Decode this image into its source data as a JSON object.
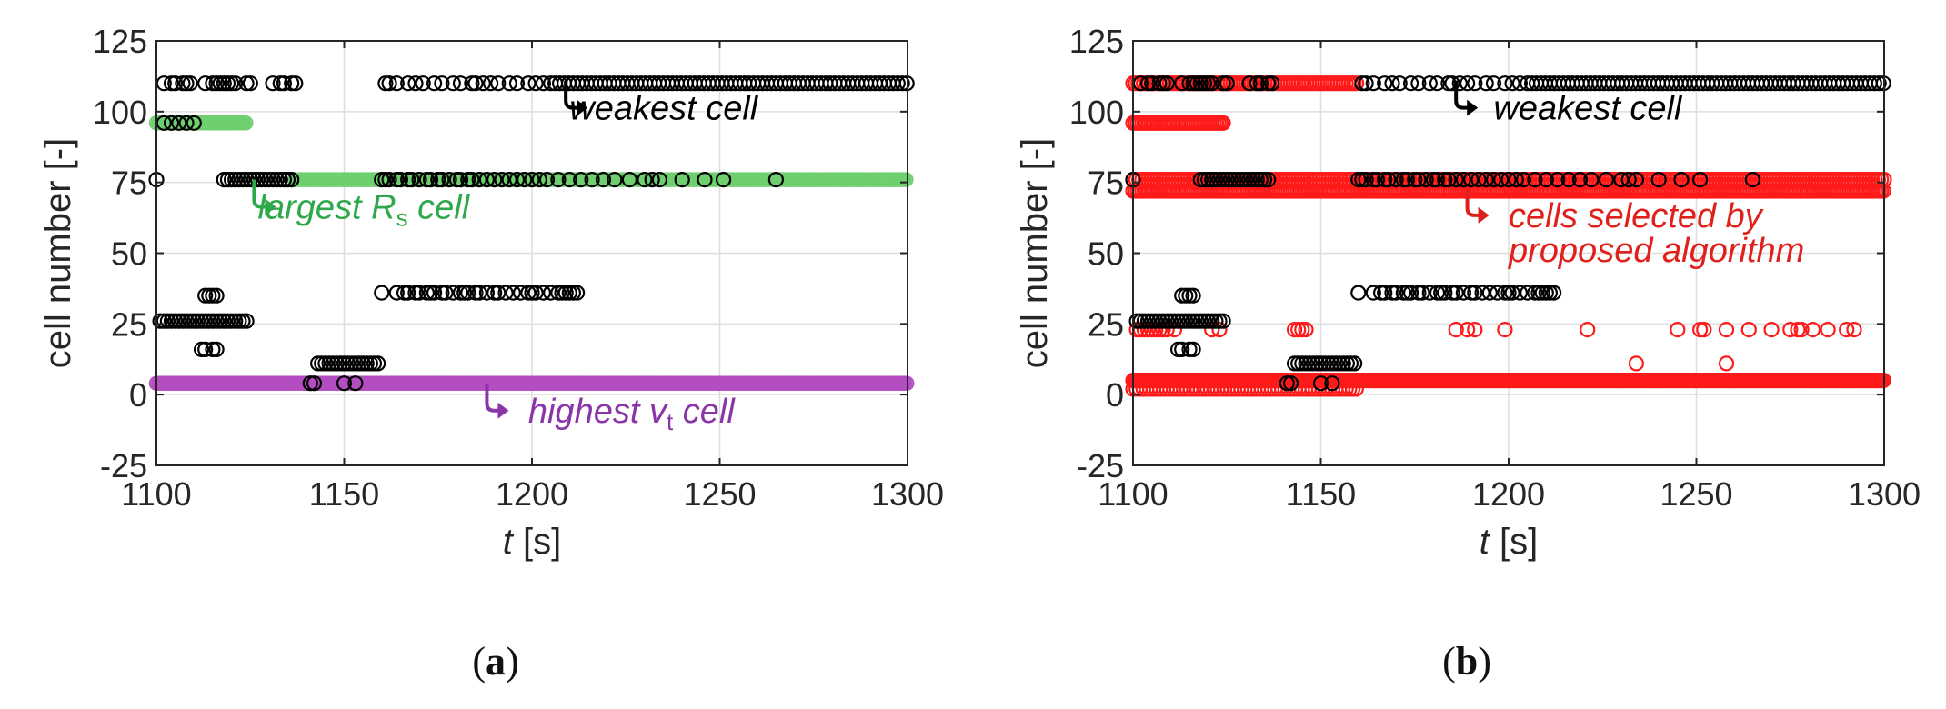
{
  "colors": {
    "axis": "#262626",
    "grid": "#dedede",
    "weakest": "#000000",
    "largest_rs": "#6fcf6f",
    "largest_rs_text": "#2ea84a",
    "highest_vt": "#b44dc2",
    "highest_vt_text": "#8a36a8",
    "selected": "#ff1a1a",
    "selected_text": "#e0201b"
  },
  "chart_data": [
    {
      "panel": "a",
      "type": "scatter",
      "xlabel_var": "t",
      "xlabel_unit": "[s]",
      "ylabel": "cell number [-]",
      "xlim": [
        1100,
        1300
      ],
      "ylim": [
        -25,
        125
      ],
      "xticks": [
        "1100",
        "1150",
        "1200",
        "1250",
        "1300"
      ],
      "yticks": [
        "-25",
        "0",
        "25",
        "50",
        "75",
        "100",
        "125"
      ],
      "grid": true,
      "caption": {
        "open": "(",
        "letter": "a",
        "close": ")"
      },
      "annotations": [
        {
          "text": "weakest cell",
          "x": 1210,
          "y": 101,
          "color": "weakest",
          "arrow_x": 1209,
          "arrow_y": 111
        },
        {
          "text_pre": "largest ",
          "var": "R",
          "sub": "s",
          "text_post": " cell",
          "x": 1127,
          "y": 66,
          "color": "largest_rs_text",
          "arrow_x": 1126,
          "arrow_y": 76
        },
        {
          "text_pre": "highest ",
          "var": "v",
          "sub": "t",
          "text_post": " cell",
          "x": 1199,
          "y": -6,
          "color": "highest_vt_text",
          "arrow_x": 1188,
          "arrow_y": 4
        }
      ],
      "series": [
        {
          "name": "highest v_t cell",
          "style": "filled",
          "color": "highest_vt",
          "y": 4,
          "segments": [
            [
              1100,
              1300,
              0.6
            ]
          ],
          "points": []
        },
        {
          "name": "largest R_s cell",
          "style": "filled",
          "color": "largest_rs",
          "segments": [],
          "points": [],
          "bands": [
            {
              "y": 96,
              "from": 1100,
              "to": 1124,
              "step": 0.7
            },
            {
              "y": 76,
              "from": 1137,
              "to": 1300,
              "step": 0.6
            }
          ]
        },
        {
          "name": "weakest cell",
          "style": "open",
          "color": "weakest",
          "groups": [
            {
              "y": 110,
              "xs": [
                1102,
                1104,
                1105,
                1107,
                1108,
                1109,
                1113,
                1115,
                1116,
                1117,
                1118,
                1119,
                1120,
                1121,
                1124,
                1125,
                1131,
                1133,
                1134,
                1136,
                1137,
                1161,
                1162,
                1164,
                1167,
                1169,
                1171,
                1174,
                1176,
                1179,
                1181,
                1184,
                1185,
                1187,
                1189,
                1191,
                1194,
                1196,
                1199,
                1201,
                1203
              ]
            },
            {
              "y": 110,
              "from": 1205,
              "to": 1300,
              "step": 1.2
            },
            {
              "y": 96,
              "xs": [
                1102,
                1104,
                1106,
                1108,
                1110
              ]
            },
            {
              "y": 76,
              "xs": [
                1100,
                1118,
                1119,
                1120,
                1121,
                1122,
                1123,
                1124,
                1125,
                1126,
                1127,
                1128,
                1129,
                1130,
                1131,
                1132,
                1133,
                1134,
                1135,
                1136,
                1160,
                1161,
                1162,
                1164,
                1165,
                1167,
                1168,
                1170,
                1172,
                1173,
                1175,
                1176,
                1178,
                1180,
                1181,
                1183,
                1184,
                1186,
                1188,
                1190,
                1192,
                1194,
                1196,
                1198,
                1200,
                1202,
                1204,
                1207,
                1210,
                1213,
                1216,
                1219,
                1222,
                1226,
                1230,
                1232,
                1234,
                1240,
                1246,
                1251,
                1265
              ]
            },
            {
              "y": 36,
              "xs": [
                1160,
                1164,
                1166,
                1167,
                1169,
                1170,
                1172,
                1173,
                1174,
                1176,
                1177,
                1179,
                1181,
                1182,
                1183,
                1185,
                1186,
                1188,
                1190,
                1191,
                1193,
                1195,
                1197,
                1199,
                1200,
                1201,
                1203,
                1205,
                1207,
                1208,
                1209,
                1210,
                1211,
                1212
              ]
            },
            {
              "y": 35,
              "xs": [
                1113,
                1114,
                1115,
                1116
              ]
            },
            {
              "y": 26,
              "xs": [
                1101,
                1102,
                1103,
                1104,
                1105,
                1106,
                1107,
                1108,
                1109,
                1110,
                1111,
                1112,
                1113,
                1114,
                1115,
                1116,
                1117,
                1118,
                1119,
                1120,
                1121,
                1122,
                1123,
                1124
              ]
            },
            {
              "y": 16,
              "xs": [
                1112,
                1113,
                1115,
                1116
              ]
            },
            {
              "y": 11,
              "xs": [
                1143,
                1144,
                1145,
                1146,
                1147,
                1148,
                1149,
                1150,
                1151,
                1152,
                1153,
                1154,
                1155,
                1156,
                1157,
                1158,
                1159
              ]
            },
            {
              "y": 4,
              "xs": [
                1141,
                1142,
                1150,
                1153
              ]
            }
          ]
        }
      ]
    },
    {
      "panel": "b",
      "type": "scatter",
      "xlabel_var": "t",
      "xlabel_unit": "[s]",
      "ylabel": "cell number [-]",
      "xlim": [
        1100,
        1300
      ],
      "ylim": [
        -25,
        125
      ],
      "xticks": [
        "1100",
        "1150",
        "1200",
        "1250",
        "1300"
      ],
      "yticks": [
        "-25",
        "0",
        "25",
        "50",
        "75",
        "100",
        "125"
      ],
      "grid": true,
      "caption": {
        "open": "(",
        "letter": "b",
        "close": ")"
      },
      "annotations": [
        {
          "text": "weakest cell",
          "x": 1196,
          "y": 101,
          "color": "weakest",
          "arrow_x": 1186,
          "arrow_y": 111
        },
        {
          "lines": [
            "cells selected by",
            "proposed algorithm"
          ],
          "x": 1200,
          "y": 63,
          "color": "selected_text",
          "arrow_x": 1189,
          "arrow_y": 73
        }
      ],
      "series": [
        {
          "name": "cells selected by proposed algorithm",
          "style": "open",
          "color": "selected",
          "bands": [
            {
              "y": 110,
              "from": 1100,
              "to": 1160,
              "step": 0.7
            },
            {
              "y": 96,
              "from": 1100,
              "to": 1124,
              "step": 0.6
            },
            {
              "y": 72,
              "from": 1100,
              "to": 1300,
              "step": 0.6
            },
            {
              "y": 76,
              "from": 1100,
              "to": 1300,
              "step": 0.8
            },
            {
              "y": 5,
              "from": 1100,
              "to": 1300,
              "step": 0.45
            },
            {
              "y": 2,
              "from": 1100,
              "to": 1160,
              "step": 0.9
            }
          ],
          "groups": [
            {
              "y": 23,
              "xs": [
                1101,
                1102,
                1103,
                1104,
                1105,
                1106,
                1107,
                1108,
                1109,
                1111,
                1121,
                1123,
                1143,
                1144,
                1145,
                1146,
                1186,
                1189,
                1191,
                1199,
                1221,
                1245,
                1251,
                1252,
                1258,
                1264,
                1270,
                1275,
                1277,
                1278,
                1281,
                1285,
                1290,
                1292
              ]
            },
            {
              "y": 11,
              "xs": [
                1234,
                1258
              ]
            }
          ]
        },
        {
          "name": "weakest cell",
          "style": "open",
          "color": "weakest",
          "groups": [
            {
              "y": 110,
              "xs": [
                1102,
                1104,
                1105,
                1107,
                1108,
                1109,
                1113,
                1115,
                1116,
                1117,
                1118,
                1119,
                1120,
                1121,
                1124,
                1125,
                1131,
                1133,
                1134,
                1136,
                1137,
                1161,
                1162,
                1164,
                1167,
                1169,
                1171,
                1174,
                1176,
                1179,
                1181,
                1184,
                1185,
                1187,
                1189,
                1191,
                1194,
                1196,
                1199,
                1201,
                1203
              ]
            },
            {
              "y": 110,
              "from": 1205,
              "to": 1300,
              "step": 1.2
            },
            {
              "y": 76,
              "xs": [
                1100,
                1118,
                1119,
                1120,
                1121,
                1122,
                1123,
                1124,
                1125,
                1126,
                1127,
                1128,
                1129,
                1130,
                1131,
                1132,
                1133,
                1134,
                1135,
                1136,
                1160,
                1161,
                1162,
                1164,
                1165,
                1167,
                1168,
                1170,
                1172,
                1173,
                1175,
                1176,
                1178,
                1180,
                1181,
                1183,
                1184,
                1186,
                1188,
                1190,
                1192,
                1194,
                1196,
                1198,
                1200,
                1202,
                1204,
                1207,
                1210,
                1213,
                1216,
                1219,
                1222,
                1226,
                1230,
                1232,
                1234,
                1240,
                1246,
                1251,
                1265
              ]
            },
            {
              "y": 36,
              "xs": [
                1160,
                1164,
                1166,
                1167,
                1169,
                1170,
                1172,
                1173,
                1174,
                1176,
                1177,
                1179,
                1181,
                1182,
                1183,
                1185,
                1186,
                1188,
                1190,
                1191,
                1193,
                1195,
                1197,
                1199,
                1200,
                1201,
                1203,
                1205,
                1207,
                1208,
                1209,
                1210,
                1211,
                1212
              ]
            },
            {
              "y": 35,
              "xs": [
                1113,
                1114,
                1115,
                1116
              ]
            },
            {
              "y": 26,
              "xs": [
                1101,
                1102,
                1103,
                1104,
                1105,
                1106,
                1107,
                1108,
                1109,
                1110,
                1111,
                1112,
                1113,
                1114,
                1115,
                1116,
                1117,
                1118,
                1119,
                1120,
                1121,
                1122,
                1123,
                1124
              ]
            },
            {
              "y": 16,
              "xs": [
                1112,
                1113,
                1115,
                1116
              ]
            },
            {
              "y": 11,
              "xs": [
                1143,
                1144,
                1145,
                1146,
                1147,
                1148,
                1149,
                1150,
                1151,
                1152,
                1153,
                1154,
                1155,
                1156,
                1157,
                1158,
                1159
              ]
            },
            {
              "y": 4,
              "xs": [
                1141,
                1142,
                1150,
                1153
              ]
            }
          ]
        }
      ]
    }
  ]
}
